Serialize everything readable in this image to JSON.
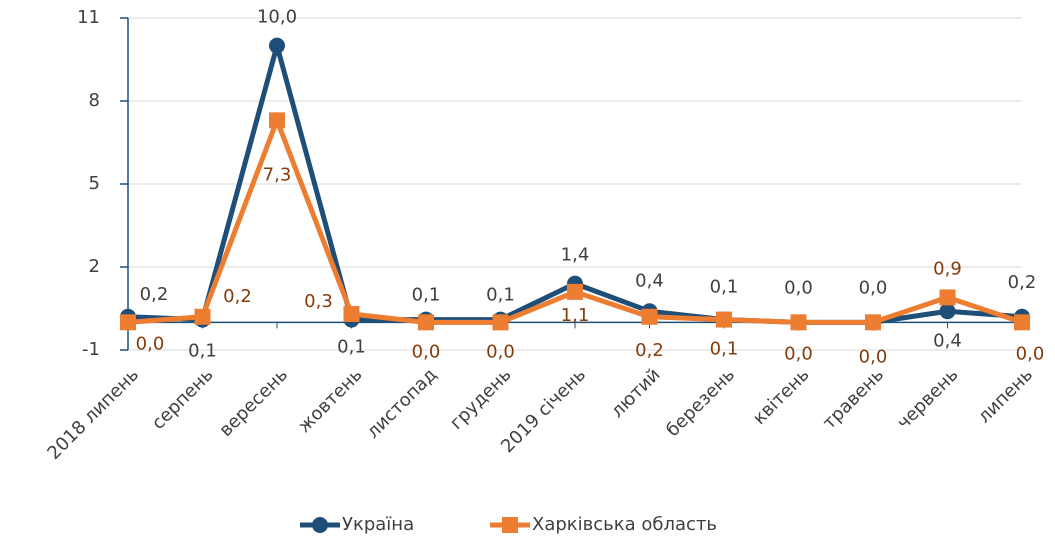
{
  "chart_data": {
    "type": "line",
    "categories": [
      "2018 липень",
      "серпень",
      "вересень",
      "жовтень",
      "листопад",
      "грудень",
      "2019 січень",
      "лютий",
      "березень",
      "квітень",
      "травень",
      "червень",
      "липень"
    ],
    "series": [
      {
        "name": "Україна",
        "color": "#1f4e79",
        "label_color": "#404040",
        "marker": "circle",
        "values": [
          0.2,
          0.1,
          10.0,
          0.1,
          0.1,
          0.1,
          1.4,
          0.4,
          0.1,
          0.0,
          0.0,
          0.4,
          0.2
        ],
        "value_labels": [
          "0,2",
          "0,1",
          "10,0",
          "0,1",
          "0,1",
          "0,1",
          "1,4",
          "0,4",
          "0,1",
          "0,0",
          "0,0",
          "0,4",
          "0,2"
        ]
      },
      {
        "name": "Харківська область",
        "color": "#ed7d31",
        "label_color": "#843c0c",
        "marker": "square",
        "values": [
          0.0,
          0.2,
          7.3,
          0.3,
          0.0,
          0.0,
          1.1,
          0.2,
          0.1,
          0.0,
          0.0,
          0.9,
          0.0
        ],
        "value_labels": [
          "0,0",
          "0,2",
          "7,3",
          "0,3",
          "0,0",
          "0,0",
          "1,1",
          "0,2",
          "0,1",
          "0,0",
          "0,0",
          "0,9",
          "0,0"
        ]
      }
    ],
    "ylim": [
      -1,
      11
    ],
    "yticks": [
      -1,
      2,
      5,
      8,
      11
    ],
    "grid": true,
    "legend": "bottom"
  }
}
